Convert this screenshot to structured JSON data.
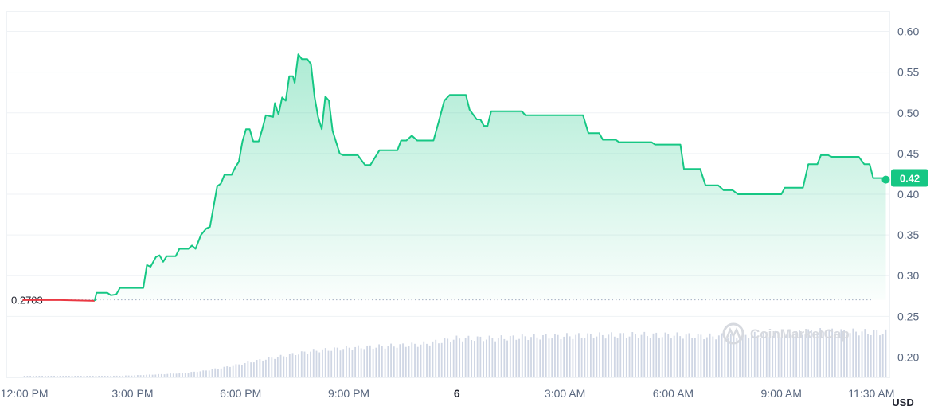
{
  "chart_data": {
    "type": "line",
    "unit_label": "USD",
    "watermark": "CoinMarketCap",
    "reference": {
      "value": 0.2703,
      "label": "0.2703"
    },
    "current": {
      "value": 0.42,
      "label": "0.42"
    },
    "ylim": [
      0.175,
      0.625
    ],
    "y_ticks": [
      {
        "value": 0.6,
        "label": "0.60"
      },
      {
        "value": 0.55,
        "label": "0.55"
      },
      {
        "value": 0.5,
        "label": "0.50"
      },
      {
        "value": 0.45,
        "label": "0.45"
      },
      {
        "value": 0.4,
        "label": "0.40"
      },
      {
        "value": 0.35,
        "label": "0.35"
      },
      {
        "value": 0.3,
        "label": "0.30"
      },
      {
        "value": 0.25,
        "label": "0.25"
      },
      {
        "value": 0.2,
        "label": "0.20"
      }
    ],
    "x_ticks": [
      {
        "t": 0,
        "label": "12:00 PM",
        "bold": false
      },
      {
        "t": 3,
        "label": "3:00 PM",
        "bold": false
      },
      {
        "t": 6,
        "label": "6:00 PM",
        "bold": false
      },
      {
        "t": 9,
        "label": "9:00 PM",
        "bold": false
      },
      {
        "t": 12,
        "label": "6",
        "bold": true
      },
      {
        "t": 15,
        "label": "3:00 AM",
        "bold": false
      },
      {
        "t": 18,
        "label": "6:00 AM",
        "bold": false
      },
      {
        "t": 21,
        "label": "9:00 AM",
        "bold": false
      },
      {
        "t": 23.5,
        "label": "11:30 AM",
        "bold": false
      }
    ],
    "xlim": [
      -0.5,
      24
    ],
    "colors": {
      "up": "#16c784",
      "down": "#ea3943",
      "volume": "#cfd6e4",
      "grid": "#eff2f5"
    },
    "price": [
      [
        -0.05,
        0.27
      ],
      [
        1.0,
        0.27
      ],
      [
        1.95,
        0.269
      ],
      [
        2.0,
        0.279
      ],
      [
        2.3,
        0.279
      ],
      [
        2.4,
        0.276
      ],
      [
        2.55,
        0.277
      ],
      [
        2.65,
        0.285
      ],
      [
        3.3,
        0.285
      ],
      [
        3.4,
        0.313
      ],
      [
        3.5,
        0.311
      ],
      [
        3.65,
        0.323
      ],
      [
        3.75,
        0.325
      ],
      [
        3.85,
        0.317
      ],
      [
        3.95,
        0.324
      ],
      [
        4.2,
        0.324
      ],
      [
        4.3,
        0.333
      ],
      [
        4.55,
        0.333
      ],
      [
        4.65,
        0.337
      ],
      [
        4.75,
        0.333
      ],
      [
        4.9,
        0.35
      ],
      [
        5.05,
        0.358
      ],
      [
        5.15,
        0.36
      ],
      [
        5.25,
        0.385
      ],
      [
        5.35,
        0.41
      ],
      [
        5.45,
        0.413
      ],
      [
        5.55,
        0.424
      ],
      [
        5.75,
        0.424
      ],
      [
        5.85,
        0.433
      ],
      [
        5.95,
        0.44
      ],
      [
        6.05,
        0.465
      ],
      [
        6.15,
        0.48
      ],
      [
        6.25,
        0.48
      ],
      [
        6.35,
        0.465
      ],
      [
        6.5,
        0.465
      ],
      [
        6.6,
        0.48
      ],
      [
        6.7,
        0.497
      ],
      [
        6.9,
        0.495
      ],
      [
        6.95,
        0.512
      ],
      [
        7.05,
        0.498
      ],
      [
        7.15,
        0.519
      ],
      [
        7.25,
        0.515
      ],
      [
        7.35,
        0.545
      ],
      [
        7.45,
        0.545
      ],
      [
        7.5,
        0.537
      ],
      [
        7.6,
        0.572
      ],
      [
        7.7,
        0.566
      ],
      [
        7.85,
        0.566
      ],
      [
        7.95,
        0.56
      ],
      [
        8.05,
        0.52
      ],
      [
        8.15,
        0.495
      ],
      [
        8.25,
        0.48
      ],
      [
        8.35,
        0.52
      ],
      [
        8.45,
        0.515
      ],
      [
        8.55,
        0.478
      ],
      [
        8.75,
        0.45
      ],
      [
        8.85,
        0.448
      ],
      [
        9.25,
        0.448
      ],
      [
        9.45,
        0.436
      ],
      [
        9.6,
        0.436
      ],
      [
        9.85,
        0.454
      ],
      [
        10.35,
        0.454
      ],
      [
        10.45,
        0.466
      ],
      [
        10.6,
        0.466
      ],
      [
        10.75,
        0.472
      ],
      [
        10.9,
        0.466
      ],
      [
        11.35,
        0.466
      ],
      [
        11.5,
        0.49
      ],
      [
        11.65,
        0.515
      ],
      [
        11.8,
        0.522
      ],
      [
        12.25,
        0.522
      ],
      [
        12.35,
        0.504
      ],
      [
        12.55,
        0.492
      ],
      [
        12.65,
        0.492
      ],
      [
        12.75,
        0.484
      ],
      [
        12.85,
        0.484
      ],
      [
        12.95,
        0.502
      ],
      [
        13.8,
        0.502
      ],
      [
        13.9,
        0.497
      ],
      [
        15.5,
        0.497
      ],
      [
        15.65,
        0.475
      ],
      [
        15.95,
        0.475
      ],
      [
        16.05,
        0.467
      ],
      [
        16.4,
        0.467
      ],
      [
        16.5,
        0.464
      ],
      [
        17.4,
        0.464
      ],
      [
        17.5,
        0.461
      ],
      [
        18.2,
        0.461
      ],
      [
        18.3,
        0.431
      ],
      [
        18.75,
        0.431
      ],
      [
        18.9,
        0.411
      ],
      [
        19.25,
        0.411
      ],
      [
        19.4,
        0.405
      ],
      [
        19.65,
        0.405
      ],
      [
        19.8,
        0.4
      ],
      [
        21.0,
        0.4
      ],
      [
        21.1,
        0.408
      ],
      [
        21.6,
        0.408
      ],
      [
        21.75,
        0.437
      ],
      [
        22.0,
        0.437
      ],
      [
        22.1,
        0.448
      ],
      [
        22.3,
        0.448
      ],
      [
        22.4,
        0.446
      ],
      [
        23.15,
        0.446
      ],
      [
        23.3,
        0.437
      ],
      [
        23.45,
        0.437
      ],
      [
        23.55,
        0.42
      ],
      [
        23.8,
        0.42
      ],
      [
        23.9,
        0.418
      ]
    ],
    "volume_profile": [
      [
        0,
        0.02
      ],
      [
        1,
        0.02
      ],
      [
        2,
        0.03
      ],
      [
        3,
        0.05
      ],
      [
        4,
        0.09
      ],
      [
        4.5,
        0.12
      ],
      [
        5,
        0.17
      ],
      [
        5.5,
        0.25
      ],
      [
        6,
        0.34
      ],
      [
        6.5,
        0.44
      ],
      [
        7,
        0.52
      ],
      [
        7.5,
        0.6
      ],
      [
        8,
        0.68
      ],
      [
        8.5,
        0.72
      ],
      [
        9,
        0.76
      ],
      [
        10,
        0.8
      ],
      [
        11,
        0.85
      ],
      [
        11.5,
        0.92
      ],
      [
        12,
        1.0
      ],
      [
        13,
        1.0
      ],
      [
        14,
        1.04
      ],
      [
        15,
        1.06
      ],
      [
        16,
        1.08
      ],
      [
        17,
        1.09
      ],
      [
        18,
        1.08
      ],
      [
        19,
        1.05
      ],
      [
        20,
        1.08
      ],
      [
        21,
        1.12
      ],
      [
        22,
        1.18
      ],
      [
        23,
        1.17
      ],
      [
        23.9,
        1.15
      ]
    ]
  }
}
